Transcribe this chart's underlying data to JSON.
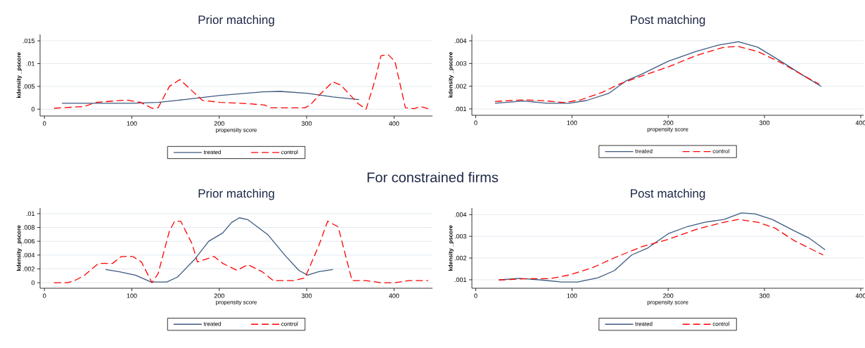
{
  "chart_data": [
    {
      "type": "line",
      "title": "Prior matching",
      "xlabel": "propensity score",
      "ylabel": "kdensity _pscore",
      "xlim": [
        -5,
        444
      ],
      "ylim": [
        -0.0015,
        0.0164
      ],
      "xticks": [
        0,
        100,
        200,
        300,
        400
      ],
      "yticks": [
        0,
        {
          "value": 0.005,
          "label": ".005"
        },
        {
          "value": 0.01,
          "label": ".01"
        },
        {
          "value": 0.015,
          "label": ".015"
        }
      ],
      "grid": "y",
      "legend": "bottom",
      "series": [
        {
          "name": "treated",
          "color": "#3d5a80",
          "line_style": "solid",
          "x": [
            20,
            100,
            130,
            160,
            200,
            250,
            270,
            300,
            330,
            360
          ],
          "values": [
            0.0013,
            0.0013,
            0.0015,
            0.0021,
            0.003,
            0.0038,
            0.0039,
            0.0035,
            0.0027,
            0.0021
          ]
        },
        {
          "name": "control",
          "color": "#ff0000",
          "line_style": "dashed",
          "x": [
            11,
            46,
            59,
            94,
            110,
            123,
            130,
            143,
            155,
            169,
            181,
            201,
            233,
            252,
            259,
            298,
            304,
            314,
            330,
            339,
            359,
            368,
            378,
            385,
            393,
            401,
            413,
            423,
            430,
            439
          ],
          "values": [
            0.0002,
            0.0006,
            0.0015,
            0.002,
            0.0015,
            0.0002,
            0.0003,
            0.005,
            0.0065,
            0.004,
            0.0019,
            0.0015,
            0.0012,
            0.0009,
            0.0003,
            0.0003,
            0.0009,
            0.003,
            0.006,
            0.0053,
            0.0012,
            0,
            0.0062,
            0.0117,
            0.012,
            0.0105,
            0.0003,
            0.0001,
            0.0006,
            0.0001
          ]
        }
      ]
    },
    {
      "type": "line",
      "title": "Post matching",
      "xlabel": "propensity score",
      "ylabel": "kdensity _pscore",
      "xlim": [
        -4,
        403
      ],
      "ylim": [
        0.00072,
        0.00428
      ],
      "xticks": [
        0,
        100,
        200,
        300,
        400
      ],
      "yticks": [
        {
          "value": 0.001,
          "label": ".001"
        },
        {
          "value": 0.002,
          "label": ".002"
        },
        {
          "value": 0.003,
          "label": ".003"
        },
        {
          "value": 0.004,
          "label": ".004"
        }
      ],
      "grid": "y",
      "legend": "bottom",
      "series": [
        {
          "name": "treated",
          "color": "#3d5a80",
          "line_style": "solid",
          "x": [
            20,
            50,
            74,
            97,
            115,
            138,
            156,
            173,
            200,
            229,
            252,
            273,
            293,
            317,
            340,
            359
          ],
          "values": [
            0.00125,
            0.00135,
            0.00125,
            0.00125,
            0.00137,
            0.00168,
            0.00223,
            0.00254,
            0.0031,
            0.00353,
            0.00381,
            0.00396,
            0.00372,
            0.0031,
            0.00248,
            0.00199
          ]
        },
        {
          "name": "control",
          "color": "#ff0000",
          "line_style": "dashed",
          "x": [
            20,
            50,
            74,
            92,
            109,
            132,
            150,
            173,
            200,
            229,
            258,
            273,
            293,
            317,
            340,
            357
          ],
          "values": [
            0.00133,
            0.0014,
            0.00135,
            0.00128,
            0.0014,
            0.00174,
            0.00211,
            0.00246,
            0.00285,
            0.00335,
            0.00372,
            0.00375,
            0.00353,
            0.00304,
            0.00248,
            0.00209
          ]
        }
      ]
    },
    {
      "type": "line",
      "title": "Prior matching",
      "xlabel": "propensity score",
      "ylabel": "kdensity _pscore",
      "annotations": [
        "For constrained firms"
      ],
      "xlim": [
        -5,
        444
      ],
      "ylim": [
        -0.0008,
        0.0108
      ],
      "xticks": [
        0,
        100,
        200,
        300,
        400
      ],
      "yticks": [
        0,
        {
          "value": 0.002,
          "label": ".002"
        },
        {
          "value": 0.004,
          "label": ".004"
        },
        {
          "value": 0.006,
          "label": ".006"
        },
        {
          "value": 0.008,
          "label": ".008"
        },
        {
          "value": 0.01,
          "label": ".01"
        }
      ],
      "grid": "y",
      "legend": "bottom",
      "series": [
        {
          "name": "treated",
          "color": "#3d5a80",
          "line_style": "solid",
          "x": [
            70,
            85,
            104,
            122,
            140,
            152,
            172,
            188,
            204,
            214,
            223,
            233,
            256,
            275,
            291,
            301,
            314,
            330
          ],
          "values": [
            0.0019,
            0.0016,
            0.0011,
            0.0001,
            0.0001,
            0.0008,
            0.0034,
            0.006,
            0.0072,
            0.0087,
            0.0094,
            0.0091,
            0.0069,
            0.004,
            0.0018,
            0.0011,
            0.0016,
            0.0019
          ]
        },
        {
          "name": "control",
          "color": "#ff0000",
          "line_style": "dashed",
          "x": [
            11,
            27,
            36,
            46,
            62,
            78,
            88,
            101,
            111,
            123,
            130,
            143,
            149,
            156,
            169,
            175,
            194,
            204,
            220,
            233,
            249,
            262,
            285,
            298,
            314,
            324,
            336,
            352,
            368,
            385,
            401,
            417,
            439
          ],
          "values": [
            0,
            0,
            0.0004,
            0.0011,
            0.0028,
            0.0028,
            0.0038,
            0.0038,
            0.003,
            0,
            0.0013,
            0.0075,
            0.0089,
            0.0089,
            0.0056,
            0.003,
            0.0038,
            0.0028,
            0.0018,
            0.0026,
            0.0016,
            0.0003,
            0.0003,
            0.0007,
            0.0054,
            0.0089,
            0.0081,
            0.0003,
            0.0003,
            0,
            0,
            0.0003,
            0.0003
          ]
        }
      ]
    },
    {
      "type": "line",
      "title": "Post matching",
      "xlabel": "propensity score",
      "ylabel": "kdensity _pscore",
      "xlim": [
        -4,
        403
      ],
      "ylim": [
        0.00061,
        0.0043
      ],
      "xticks": [
        0,
        100,
        200,
        300,
        400
      ],
      "yticks": [
        {
          "value": 0.001,
          "label": ".001"
        },
        {
          "value": 0.002,
          "label": ".002"
        },
        {
          "value": 0.003,
          "label": ".003"
        },
        {
          "value": 0.004,
          "label": ".004"
        }
      ],
      "grid": "y",
      "legend": "bottom",
      "series": [
        {
          "name": "treated",
          "color": "#3d5a80",
          "line_style": "solid",
          "x": [
            24,
            45,
            68,
            89,
            106,
            127,
            144,
            162,
            179,
            200,
            220,
            238,
            258,
            276,
            290,
            308,
            331,
            346,
            363
          ],
          "values": [
            0.00099,
            0.00107,
            0.00099,
            0.0009,
            0.0009,
            0.00109,
            0.00142,
            0.00214,
            0.00247,
            0.00312,
            0.00345,
            0.00365,
            0.00378,
            0.00408,
            0.00404,
            0.00378,
            0.00325,
            0.00293,
            0.00238
          ]
        },
        {
          "name": "control",
          "color": "#ff0000",
          "line_style": "dashed",
          "x": [
            24,
            54,
            77,
            97,
            121,
            144,
            173,
            200,
            229,
            258,
            273,
            293,
            311,
            331,
            361
          ],
          "values": [
            0.00099,
            0.00105,
            0.00105,
            0.00122,
            0.00155,
            0.00201,
            0.00253,
            0.00286,
            0.00332,
            0.00365,
            0.00378,
            0.00365,
            0.00338,
            0.0028,
            0.00214
          ]
        }
      ]
    }
  ]
}
